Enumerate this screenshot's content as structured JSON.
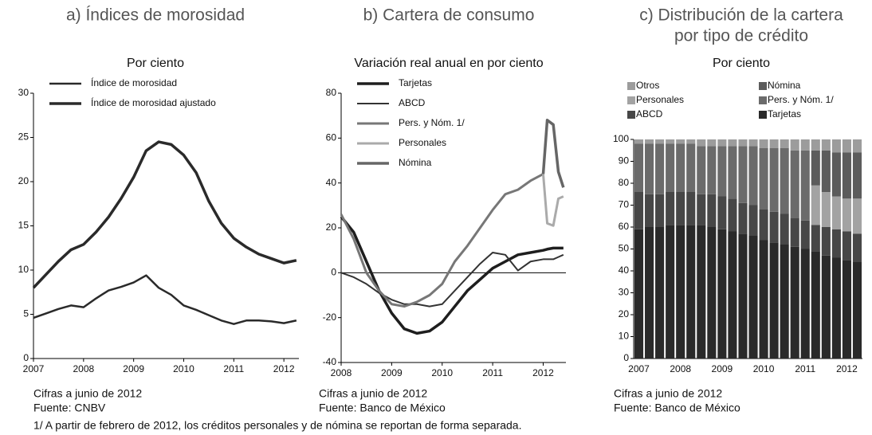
{
  "chart_data": [
    {
      "type": "line",
      "title": [
        "a) Índices de morosidad"
      ],
      "subtitle": "Por ciento",
      "x": [
        2007,
        2007.25,
        2007.5,
        2007.75,
        2008,
        2008.25,
        2008.5,
        2008.75,
        2009,
        2009.25,
        2009.5,
        2009.75,
        2010,
        2010.25,
        2010.5,
        2010.75,
        2011,
        2011.25,
        2011.5,
        2011.75,
        2012,
        2012.25
      ],
      "series": [
        {
          "name": "Índice de morosidad",
          "color": "#2a2a2a",
          "width": 2.5,
          "values": [
            4.6,
            5.1,
            5.6,
            6.0,
            5.8,
            6.8,
            7.7,
            8.1,
            8.6,
            9.4,
            8.0,
            7.2,
            6.0,
            5.5,
            4.9,
            4.3,
            3.9,
            4.3,
            4.3,
            4.2,
            4.0,
            4.3
          ]
        },
        {
          "name": "Índice de morosidad ajustado",
          "color": "#2a2a2a",
          "width": 3.5,
          "values": [
            8.0,
            9.5,
            11.0,
            12.3,
            12.9,
            14.3,
            16.0,
            18.1,
            20.5,
            23.5,
            24.5,
            24.2,
            23.0,
            21.0,
            17.8,
            15.3,
            13.6,
            12.6,
            11.8,
            11.3,
            10.8,
            11.1
          ]
        }
      ],
      "xlim": [
        2007,
        2012.3
      ],
      "xticks": [
        2007,
        2008,
        2009,
        2010,
        2011,
        2012
      ],
      "ylim": [
        0,
        30
      ],
      "yticks": [
        0,
        5,
        10,
        15,
        20,
        25,
        30
      ],
      "legend": "upper left",
      "notes": [
        "Cifras a junio de 2012",
        "Fuente: CNBV"
      ]
    },
    {
      "type": "line",
      "title": [
        "b) Cartera de consumo"
      ],
      "subtitle": "Variación real anual en por ciento",
      "x": [
        2008,
        2008.25,
        2008.5,
        2008.75,
        2009,
        2009.25,
        2009.5,
        2009.75,
        2010,
        2010.25,
        2010.5,
        2010.75,
        2011,
        2011.25,
        2011.5,
        2011.75,
        2012,
        2012.08,
        2012.2,
        2012.3,
        2012.4
      ],
      "series": [
        {
          "name": "Tarjetas",
          "color": "#1e1e1e",
          "width": 3.5,
          "values": [
            25,
            18,
            5,
            -8,
            -18,
            -25,
            -27,
            -26,
            -22,
            -15,
            -8,
            -3,
            2,
            5,
            8,
            9,
            10,
            10.5,
            11,
            11,
            11
          ]
        },
        {
          "name": "ABCD",
          "color": "#333333",
          "width": 2,
          "values": [
            0,
            -2,
            -5,
            -9,
            -12,
            -14,
            -14,
            -15,
            -14,
            -8,
            -2,
            4,
            9,
            8,
            1,
            5,
            6,
            6,
            6,
            7,
            8
          ]
        },
        {
          "name": "Pers. y Nóm. 1/",
          "color": "#777777",
          "width": 3,
          "values": [
            26,
            15,
            0,
            -8,
            -14,
            -15,
            -13,
            -10,
            -5,
            5,
            12,
            20,
            28,
            35,
            37,
            41,
            44,
            null,
            null,
            null,
            null
          ]
        },
        {
          "name": "Personales",
          "color": "#aaaaaa",
          "width": 3,
          "values": [
            null,
            null,
            null,
            null,
            null,
            null,
            null,
            null,
            null,
            null,
            null,
            null,
            null,
            null,
            null,
            null,
            44,
            22,
            21,
            33,
            34
          ]
        },
        {
          "name": "Nómina",
          "color": "#666666",
          "width": 3.5,
          "values": [
            null,
            null,
            null,
            null,
            null,
            null,
            null,
            null,
            null,
            null,
            null,
            null,
            null,
            null,
            null,
            null,
            44,
            68,
            66,
            45,
            38
          ]
        }
      ],
      "xlim": [
        2008,
        2012.45
      ],
      "xticks": [
        2008,
        2009,
        2010,
        2011,
        2012
      ],
      "ylim": [
        -40,
        80
      ],
      "yticks": [
        -40,
        -20,
        0,
        20,
        40,
        60,
        80
      ],
      "legend": "upper left",
      "notes": [
        "Cifras a junio de 2012",
        "Fuente: Banco de México"
      ]
    },
    {
      "type": "bar",
      "title": [
        "c) Distribución de la cartera",
        "por tipo de crédito"
      ],
      "subtitle": "Por ciento",
      "stacked": true,
      "categories": [
        "2007",
        null,
        null,
        null,
        "2008",
        null,
        null,
        null,
        "2009",
        null,
        null,
        null,
        "2010",
        null,
        null,
        null,
        "2011",
        null,
        null,
        null,
        "2012",
        null
      ],
      "series": [
        {
          "name": "Tarjetas",
          "color": "#2a2a2a",
          "values": [
            59,
            60,
            60,
            61,
            61,
            61,
            61,
            60,
            59,
            58,
            57,
            56,
            54,
            53,
            52,
            51,
            50,
            49,
            47,
            46,
            45,
            44
          ]
        },
        {
          "name": "ABCD",
          "color": "#474747",
          "values": [
            17,
            15,
            15,
            15,
            15,
            15,
            14,
            15,
            15,
            15,
            14,
            14,
            14,
            14,
            14,
            13,
            13,
            12,
            13,
            13,
            13,
            13
          ]
        },
        {
          "name": "Pers. y Nóm. 1/",
          "color": "#6b6b6b",
          "values": [
            22,
            23,
            23,
            22,
            22,
            22,
            22,
            22,
            23,
            24,
            26,
            27,
            28,
            29,
            30,
            31,
            32,
            null,
            null,
            null,
            null,
            null
          ]
        },
        {
          "name": "Personales",
          "color": "#a3a3a3",
          "values": [
            null,
            null,
            null,
            null,
            null,
            null,
            null,
            null,
            null,
            null,
            null,
            null,
            null,
            null,
            null,
            null,
            null,
            18,
            16,
            15,
            15,
            16
          ]
        },
        {
          "name": "Nómina",
          "color": "#5c5c5c",
          "values": [
            null,
            null,
            null,
            null,
            null,
            null,
            null,
            null,
            null,
            null,
            null,
            null,
            null,
            null,
            null,
            null,
            null,
            16,
            19,
            20,
            21,
            21
          ]
        },
        {
          "name": "Otros",
          "color": "#9c9c9c",
          "values": [
            2,
            2,
            2,
            2,
            2,
            2,
            3,
            3,
            3,
            3,
            3,
            3,
            4,
            4,
            4,
            5,
            5,
            5,
            5,
            6,
            6,
            6
          ]
        }
      ],
      "legend_order": [
        5,
        4,
        3,
        2,
        1,
        0
      ],
      "ylim": [
        0,
        100
      ],
      "yticks": [
        0,
        10,
        20,
        30,
        40,
        50,
        60,
        70,
        80,
        90,
        100
      ],
      "notes": [
        "Cifras a junio de 2012",
        "Fuente: Banco de México"
      ]
    }
  ],
  "footnote": "1/ A partir de febrero de 2012, los créditos personales y de nómina se reportan de forma separada."
}
